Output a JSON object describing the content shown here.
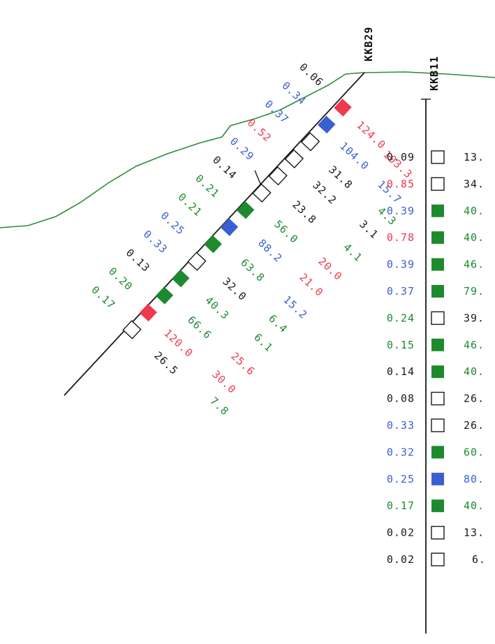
{
  "colors": {
    "black": "#1a1a1a",
    "red": "#f0384e",
    "blue": "#3a5fd0",
    "green": "#1e8a2e",
    "topography": "#2e8b3a"
  },
  "holes": {
    "kkb29": {
      "label": "KKB29",
      "left_values": [
        {
          "text": "0.06",
          "color": "black"
        },
        {
          "text": "0.34",
          "color": "blue"
        },
        {
          "text": "0.37",
          "color": "blue"
        },
        {
          "text": "0.52",
          "color": "red"
        },
        {
          "text": "0.29",
          "color": "blue"
        },
        {
          "text": "0.14",
          "color": "black"
        },
        {
          "text": "0.21",
          "color": "green"
        },
        {
          "text": "0.21",
          "color": "green"
        },
        {
          "text": "0.25",
          "color": "blue"
        },
        {
          "text": "0.33",
          "color": "blue"
        },
        {
          "text": "0.13",
          "color": "black"
        },
        {
          "text": "0.20",
          "color": "green"
        },
        {
          "text": "0.17",
          "color": "green"
        }
      ],
      "squares": [
        {
          "fill": "red"
        },
        {
          "fill": "blue"
        },
        {
          "fill": "none"
        },
        {
          "fill": "none"
        },
        {
          "fill": "none"
        },
        {
          "fill": "none"
        },
        {
          "fill": "green"
        },
        {
          "fill": "blue"
        },
        {
          "fill": "green"
        },
        {
          "fill": "none"
        },
        {
          "fill": "green"
        },
        {
          "fill": "green"
        },
        {
          "fill": "red"
        },
        {
          "fill": "none"
        }
      ],
      "right_values": [
        {
          "text": "124.0",
          "color": "red"
        },
        {
          "text": "104.0",
          "color": "blue"
        },
        {
          "text": "103.3",
          "color": "red"
        },
        {
          "text": "15.7",
          "color": "blue"
        },
        {
          "text": "31.8",
          "color": "black"
        },
        {
          "text": "4.3",
          "color": "green"
        },
        {
          "text": "32.2",
          "color": "black"
        },
        {
          "text": "3.1",
          "color": "black"
        },
        {
          "text": "23.8",
          "color": "black"
        },
        {
          "text": "4.1",
          "color": "green"
        },
        {
          "text": "56.0",
          "color": "green"
        },
        {
          "text": "20.0",
          "color": "red"
        },
        {
          "text": "88.2",
          "color": "blue"
        },
        {
          "text": "21.0",
          "color": "red"
        },
        {
          "text": "63.8",
          "color": "green"
        },
        {
          "text": "15.2",
          "color": "blue"
        },
        {
          "text": "32.0",
          "color": "black"
        },
        {
          "text": "6.4",
          "color": "green"
        },
        {
          "text": "40.3",
          "color": "green"
        },
        {
          "text": "6.1",
          "color": "green"
        },
        {
          "text": "66.6",
          "color": "green"
        },
        {
          "text": "25.6",
          "color": "red"
        },
        {
          "text": "120.0",
          "color": "red"
        },
        {
          "text": "30.0",
          "color": "red"
        },
        {
          "text": "26.5",
          "color": "black"
        },
        {
          "text": "7.8",
          "color": "green"
        }
      ]
    },
    "kkb11": {
      "label": "KKB11",
      "rows": [
        {
          "left": "0.09",
          "left_color": "black",
          "fill": "none",
          "right": "13.",
          "right_color": "black"
        },
        {
          "left": "0.85",
          "left_color": "red",
          "fill": "none",
          "right": "34.",
          "right_color": "black"
        },
        {
          "left": "0.39",
          "left_color": "blue",
          "fill": "green",
          "right": "40.",
          "right_color": "green"
        },
        {
          "left": "0.78",
          "left_color": "red",
          "fill": "green",
          "right": "40.",
          "right_color": "green"
        },
        {
          "left": "0.39",
          "left_color": "blue",
          "fill": "green",
          "right": "46.",
          "right_color": "green"
        },
        {
          "left": "0.37",
          "left_color": "blue",
          "fill": "green",
          "right": "79.",
          "right_color": "green"
        },
        {
          "left": "0.24",
          "left_color": "green",
          "fill": "none",
          "right": "39.",
          "right_color": "black"
        },
        {
          "left": "0.15",
          "left_color": "green",
          "fill": "green",
          "right": "46.",
          "right_color": "green"
        },
        {
          "left": "0.14",
          "left_color": "black",
          "fill": "green",
          "right": "40.",
          "right_color": "green"
        },
        {
          "left": "0.08",
          "left_color": "black",
          "fill": "none",
          "right": "26.",
          "right_color": "black"
        },
        {
          "left": "0.33",
          "left_color": "blue",
          "fill": "none",
          "right": "26.",
          "right_color": "black"
        },
        {
          "left": "0.32",
          "left_color": "blue",
          "fill": "green",
          "right": "60.",
          "right_color": "green"
        },
        {
          "left": "0.25",
          "left_color": "blue",
          "fill": "blue",
          "right": "80.",
          "right_color": "blue"
        },
        {
          "left": "0.17",
          "left_color": "green",
          "fill": "green",
          "right": "40.",
          "right_color": "green"
        },
        {
          "left": "0.02",
          "left_color": "black",
          "fill": "none",
          "right": "13.",
          "right_color": "black"
        },
        {
          "left": "0.02",
          "left_color": "black",
          "fill": "none",
          "right": "6.",
          "right_color": "black"
        }
      ]
    }
  }
}
